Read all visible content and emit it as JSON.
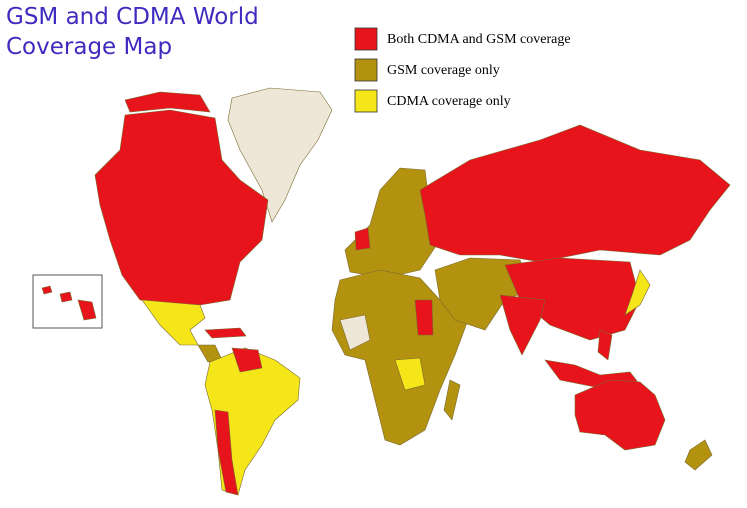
{
  "title": [
    "GSM and CDMA World",
    "Coverage Map"
  ],
  "legend": [
    {
      "label": "Both CDMA and GSM coverage",
      "color": "#e8141b"
    },
    {
      "label": "GSM coverage only",
      "color": "#b3920f"
    },
    {
      "label": "CDMA coverage only",
      "color": "#f5e61a"
    }
  ],
  "no_data_color": "#eee7d8"
}
